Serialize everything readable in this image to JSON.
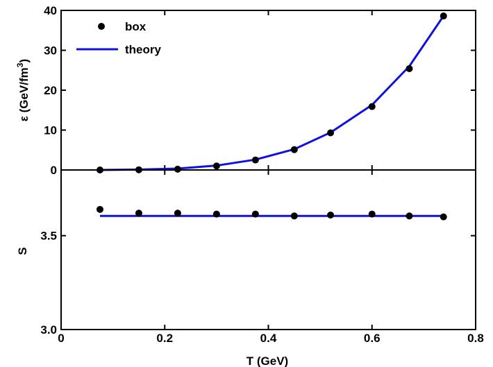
{
  "chart_data": [
    {
      "type": "line+scatter",
      "panel": "top",
      "ylabel": "ε (GeV/fm",
      "ylabel_sup": "3",
      "ylabel_tail": ")",
      "ylim": [
        0,
        40
      ],
      "yticks": [
        0,
        10,
        20,
        30,
        40
      ],
      "legend": {
        "placement": "top-left",
        "entries": [
          "box",
          "theory"
        ]
      },
      "series": [
        {
          "name": "box",
          "kind": "scatter",
          "color": "#000000",
          "x": [
            0.075,
            0.15,
            0.225,
            0.3,
            0.375,
            0.45,
            0.52,
            0.6,
            0.672,
            0.738
          ],
          "y": [
            0.0,
            0.05,
            0.2,
            1.0,
            2.5,
            5.1,
            9.3,
            15.9,
            25.4,
            38.6
          ]
        },
        {
          "name": "theory",
          "kind": "line",
          "color": "#1010e0",
          "x": [
            0.075,
            0.15,
            0.225,
            0.3,
            0.375,
            0.45,
            0.52,
            0.6,
            0.672,
            0.738
          ],
          "y": [
            0.0,
            0.1,
            0.35,
            1.1,
            2.6,
            5.2,
            9.4,
            16.3,
            26.0,
            38.6
          ]
        }
      ]
    },
    {
      "type": "line+scatter",
      "panel": "bottom",
      "xlabel": "T (GeV)",
      "ylabel": "S",
      "xlim": [
        0,
        0.8
      ],
      "xticks": [
        "0",
        "0.2",
        "0.4",
        "0.6",
        "0.8"
      ],
      "xtick_values": [
        0,
        0.2,
        0.4,
        0.6,
        0.8
      ],
      "ylim": [
        3.0,
        3.85
      ],
      "yticks": [
        "3.0",
        "3.5"
      ],
      "ytick_values": [
        3.0,
        3.5
      ],
      "series": [
        {
          "name": "box",
          "kind": "scatter",
          "color": "#000000",
          "x": [
            0.075,
            0.15,
            0.225,
            0.3,
            0.375,
            0.45,
            0.52,
            0.6,
            0.672,
            0.738
          ],
          "y": [
            3.64,
            3.62,
            3.62,
            3.615,
            3.615,
            3.605,
            3.61,
            3.615,
            3.605,
            3.6
          ]
        },
        {
          "name": "theory",
          "kind": "line",
          "color": "#1010e0",
          "x": [
            0.075,
            0.738
          ],
          "y": [
            3.605,
            3.605
          ]
        }
      ]
    }
  ],
  "legend": {
    "box_label": "box",
    "theory_label": "theory"
  },
  "colors": {
    "points": "#000000",
    "line": "#1010e0",
    "axes": "#000000"
  }
}
